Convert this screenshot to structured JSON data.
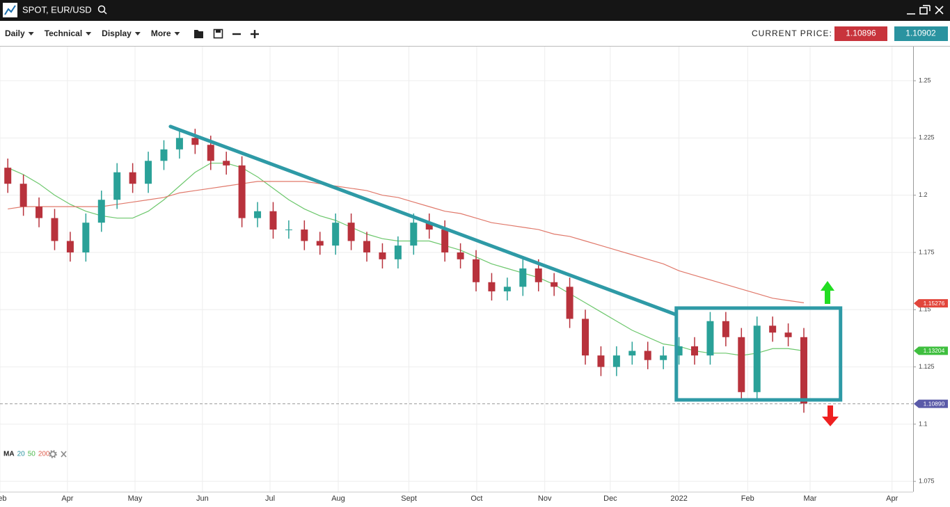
{
  "header": {
    "title": "SPOT, EUR/USD"
  },
  "toolbar": {
    "menus": [
      "Daily",
      "Technical",
      "Display",
      "More"
    ],
    "current_price_label": "CURRENT PRICE:",
    "bid": "1.10896",
    "ask": "1.10902"
  },
  "chart_data": {
    "type": "candlestick",
    "open": [
      1.212,
      1.205,
      1.195,
      1.19,
      1.18,
      1.175,
      1.188,
      1.198,
      1.21,
      1.205,
      1.215,
      1.22,
      1.225,
      1.222,
      1.215,
      1.213,
      1.19,
      1.193,
      1.185,
      1.185,
      1.18,
      1.178,
      1.188,
      1.18,
      1.175,
      1.172,
      1.178,
      1.188,
      1.185,
      1.175,
      1.172,
      1.162,
      1.158,
      1.16,
      1.168,
      1.162,
      1.16,
      1.146,
      1.13,
      1.125,
      1.13,
      1.132,
      1.128,
      1.13,
      1.134,
      1.13,
      1.145,
      1.138,
      1.114,
      1.143,
      1.14,
      1.138
    ],
    "high": [
      1.216,
      1.209,
      1.199,
      1.194,
      1.184,
      1.192,
      1.202,
      1.214,
      1.214,
      1.219,
      1.224,
      1.229,
      1.229,
      1.226,
      1.219,
      1.217,
      1.197,
      1.197,
      1.189,
      1.189,
      1.184,
      1.192,
      1.192,
      1.184,
      1.179,
      1.182,
      1.192,
      1.192,
      1.189,
      1.179,
      1.176,
      1.166,
      1.164,
      1.172,
      1.172,
      1.166,
      1.164,
      1.15,
      1.134,
      1.134,
      1.136,
      1.136,
      1.134,
      1.138,
      1.138,
      1.149,
      1.149,
      1.142,
      1.147,
      1.147,
      1.144,
      1.142
    ],
    "low": [
      1.201,
      1.191,
      1.186,
      1.176,
      1.171,
      1.171,
      1.184,
      1.194,
      1.201,
      1.201,
      1.211,
      1.216,
      1.218,
      1.211,
      1.209,
      1.186,
      1.186,
      1.181,
      1.181,
      1.176,
      1.174,
      1.174,
      1.176,
      1.171,
      1.168,
      1.168,
      1.174,
      1.181,
      1.171,
      1.168,
      1.158,
      1.154,
      1.154,
      1.156,
      1.158,
      1.156,
      1.142,
      1.126,
      1.121,
      1.121,
      1.126,
      1.124,
      1.124,
      1.126,
      1.126,
      1.126,
      1.134,
      1.11,
      1.11,
      1.136,
      1.134,
      1.105
    ],
    "close": [
      1.205,
      1.195,
      1.19,
      1.18,
      1.175,
      1.188,
      1.198,
      1.21,
      1.205,
      1.215,
      1.22,
      1.225,
      1.222,
      1.215,
      1.213,
      1.19,
      1.193,
      1.185,
      1.185,
      1.18,
      1.178,
      1.188,
      1.18,
      1.175,
      1.172,
      1.178,
      1.188,
      1.185,
      1.175,
      1.172,
      1.162,
      1.158,
      1.16,
      1.168,
      1.162,
      1.16,
      1.146,
      1.13,
      1.125,
      1.13,
      1.132,
      1.128,
      1.13,
      1.134,
      1.13,
      1.145,
      1.138,
      1.114,
      1.143,
      1.14,
      1.138,
      1.109
    ],
    "up_color": "#2aa198",
    "down_color": "#b8323c",
    "moving_averages": [
      {
        "color": "#6cc76c",
        "values": [
          1.212,
          1.209,
          1.205,
          1.2,
          1.196,
          1.193,
          1.191,
          1.19,
          1.19,
          1.193,
          1.198,
          1.204,
          1.21,
          1.214,
          1.214,
          1.212,
          1.208,
          1.203,
          1.198,
          1.194,
          1.191,
          1.189,
          1.186,
          1.183,
          1.181,
          1.18,
          1.18,
          1.18,
          1.178,
          1.176,
          1.173,
          1.17,
          1.168,
          1.166,
          1.164,
          1.161,
          1.157,
          1.153,
          1.149,
          1.145,
          1.141,
          1.138,
          1.135,
          1.134,
          1.132,
          1.131,
          1.131,
          1.13,
          1.131,
          1.133,
          1.133,
          1.132
        ]
      },
      {
        "color": "#e0786a",
        "values": [
          1.194,
          1.195,
          1.195,
          1.195,
          1.195,
          1.195,
          1.195,
          1.196,
          1.197,
          1.198,
          1.199,
          1.201,
          1.202,
          1.203,
          1.204,
          1.205,
          1.206,
          1.206,
          1.206,
          1.206,
          1.205,
          1.204,
          1.203,
          1.202,
          1.2,
          1.199,
          1.197,
          1.195,
          1.193,
          1.192,
          1.19,
          1.188,
          1.187,
          1.186,
          1.185,
          1.183,
          1.182,
          1.18,
          1.178,
          1.176,
          1.174,
          1.172,
          1.17,
          1.167,
          1.165,
          1.163,
          1.161,
          1.159,
          1.157,
          1.155,
          1.154,
          1.153
        ]
      }
    ],
    "legend": {
      "title": "MA",
      "items": [
        {
          "name": "20",
          "color": "#2a93a0"
        },
        {
          "name": "50",
          "color": "#4cb84c"
        },
        {
          "name": "200",
          "color": "#e06050"
        }
      ]
    },
    "markers": [
      {
        "value": 1.15276,
        "label": "1.15276",
        "color": "#e2463c"
      },
      {
        "value": 1.13204,
        "label": "1.13204",
        "color": "#3fbf3f"
      },
      {
        "value": 1.1089,
        "label": "1.10890",
        "color": "#5a5aa8"
      }
    ],
    "trendline": {
      "x": [
        10.92,
        43.25
      ],
      "y": [
        1.23,
        1.148
      ],
      "color": "#2e9aa6"
    },
    "range_box": {
      "x": [
        43.33,
        53.85
      ],
      "y": [
        1.1106,
        1.1507
      ],
      "color": "#2e9aa6"
    },
    "xlim": [
      0,
      58.5
    ],
    "ylim": [
      1.0705,
      1.2649
    ],
    "xticks": [
      {
        "value": 0,
        "label": "Feb"
      },
      {
        "value": 4.32,
        "label": "Apr"
      },
      {
        "value": 8.65,
        "label": "May"
      },
      {
        "value": 12.97,
        "label": "Jun"
      },
      {
        "value": 17.3,
        "label": "Jul"
      },
      {
        "value": 21.67,
        "label": "Aug"
      },
      {
        "value": 26.2,
        "label": "Sept"
      },
      {
        "value": 30.54,
        "label": "Oct"
      },
      {
        "value": 34.9,
        "label": "Nov"
      },
      {
        "value": 39.1,
        "label": "Dec"
      },
      {
        "value": 43.5,
        "label": "2022"
      },
      {
        "value": 47.9,
        "label": "Feb"
      },
      {
        "value": 51.9,
        "label": "Mar"
      },
      {
        "value": 57.15,
        "label": "Apr"
      }
    ],
    "yticks": [
      1.075,
      1.1,
      1.125,
      1.15,
      1.175,
      1.2,
      1.225,
      1.25
    ],
    "grid": true
  }
}
